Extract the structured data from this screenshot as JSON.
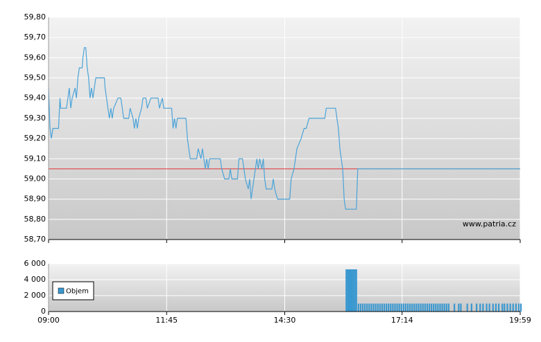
{
  "chart_data": [
    {
      "type": "line",
      "watermark": "www.patria.cz",
      "color": "#4aa3d8",
      "reference_line": 59.05,
      "reference_color": "#e03030",
      "x": [
        0,
        2,
        4,
        6,
        14,
        16,
        17,
        25,
        27,
        29,
        31,
        33,
        37,
        39,
        41,
        43,
        47,
        48,
        50,
        52,
        54,
        56,
        58,
        60,
        62,
        64,
        66,
        78,
        79,
        81,
        83,
        85,
        87,
        89,
        91,
        97,
        101,
        103,
        105,
        112,
        114,
        118,
        120,
        122,
        124,
        126,
        130,
        132,
        136,
        138,
        143,
        153,
        155,
        159,
        161,
        172,
        174,
        176,
        178,
        180,
        192,
        194,
        196,
        198,
        207,
        209,
        213,
        215,
        219,
        221,
        223,
        225,
        240,
        242,
        246,
        252,
        254,
        256,
        264,
        266,
        271,
        273,
        275,
        279,
        281,
        283,
        285,
        287,
        291,
        293,
        295,
        298,
        300,
        302,
        304,
        312,
        314,
        316,
        320,
        337,
        339,
        343,
        347,
        353,
        357,
        360,
        364,
        386,
        388,
        401,
        403,
        405,
        407,
        409,
        411,
        413,
        415,
        430,
        432,
        659
      ],
      "values": [
        59.45,
        59.25,
        59.2,
        59.25,
        59.25,
        59.4,
        59.35,
        59.35,
        59.4,
        59.45,
        59.35,
        59.4,
        59.45,
        59.4,
        59.5,
        59.55,
        59.55,
        59.6,
        59.65,
        59.65,
        59.55,
        59.5,
        59.4,
        59.45,
        59.4,
        59.45,
        59.5,
        59.5,
        59.45,
        59.4,
        59.35,
        59.3,
        59.35,
        59.3,
        59.35,
        59.4,
        59.4,
        59.35,
        59.3,
        59.3,
        59.35,
        59.3,
        59.25,
        59.3,
        59.25,
        59.3,
        59.35,
        59.4,
        59.4,
        59.35,
        59.4,
        59.4,
        59.35,
        59.4,
        59.35,
        59.35,
        59.25,
        59.3,
        59.25,
        59.3,
        59.3,
        59.2,
        59.15,
        59.1,
        59.1,
        59.15,
        59.1,
        59.15,
        59.05,
        59.1,
        59.05,
        59.1,
        59.1,
        59.05,
        59.0,
        59.0,
        59.05,
        59.0,
        59.0,
        59.1,
        59.1,
        59.05,
        59.0,
        58.95,
        59.0,
        58.9,
        58.95,
        59.0,
        59.1,
        59.05,
        59.1,
        59.05,
        59.1,
        59.0,
        58.95,
        58.95,
        59.0,
        58.95,
        58.9,
        58.9,
        59.0,
        59.05,
        59.15,
        59.2,
        59.25,
        59.25,
        59.3,
        59.3,
        59.35,
        59.35,
        59.3,
        59.25,
        59.15,
        59.1,
        59.05,
        58.9,
        58.85,
        58.85,
        59.05,
        59.05
      ],
      "xlim": [
        0,
        659
      ],
      "xticks": [
        0,
        165,
        330,
        494,
        659
      ],
      "ylim": [
        58.7,
        59.8
      ],
      "yticks": [
        {
          "value": 58.7,
          "label": "58,70"
        },
        {
          "value": 58.8,
          "label": "58,80"
        },
        {
          "value": 58.9,
          "label": "58,90"
        },
        {
          "value": 59.0,
          "label": "59,00"
        },
        {
          "value": 59.1,
          "label": "59,10"
        },
        {
          "value": 59.2,
          "label": "59,20"
        },
        {
          "value": 59.3,
          "label": "59,30"
        },
        {
          "value": 59.4,
          "label": "59,40"
        },
        {
          "value": 59.5,
          "label": "59,50"
        },
        {
          "value": 59.6,
          "label": "59,60"
        },
        {
          "value": 59.7,
          "label": "59,70"
        },
        {
          "value": 59.8,
          "label": "59,80"
        }
      ],
      "grid": true
    },
    {
      "type": "bar",
      "legend": "bottom-left",
      "x": [
        415,
        417,
        419,
        421,
        423,
        425,
        427,
        429,
        432,
        435,
        438,
        441,
        444,
        447,
        450,
        453,
        456,
        459,
        462,
        465,
        468,
        471,
        474,
        477,
        480,
        483,
        486,
        489,
        492,
        495,
        498,
        501,
        504,
        507,
        510,
        513,
        516,
        519,
        522,
        525,
        528,
        531,
        534,
        537,
        540,
        543,
        546,
        549,
        552,
        555,
        558,
        566,
        572,
        575,
        584,
        590,
        597,
        602,
        606,
        611,
        615,
        620,
        624,
        628,
        633,
        636,
        640,
        644,
        648,
        652,
        656,
        659
      ],
      "series": [
        {
          "name": "Objem",
          "color": "#3a98d0",
          "values": [
            5300,
            5300,
            5300,
            5300,
            5300,
            5300,
            5300,
            5300,
            1000,
            1000,
            1000,
            1000,
            1000,
            1000,
            1000,
            1000,
            1000,
            1000,
            1000,
            1000,
            1000,
            1000,
            1000,
            1000,
            1000,
            1000,
            1000,
            1000,
            1000,
            1000,
            1000,
            1000,
            1000,
            1000,
            1000,
            1000,
            1000,
            1000,
            1000,
            1000,
            1000,
            1000,
            1000,
            1000,
            1000,
            1000,
            1000,
            1000,
            1000,
            1000,
            1000,
            1000,
            1000,
            1000,
            1000,
            1000,
            1000,
            1000,
            1000,
            1000,
            1000,
            1000,
            1000,
            1000,
            1000,
            1000,
            1000,
            1000,
            1000,
            1000,
            1000,
            1000
          ]
        }
      ],
      "xlim": [
        0,
        659
      ],
      "xticks": [
        {
          "value": 0,
          "label": "09:00"
        },
        {
          "value": 165,
          "label": "11:45"
        },
        {
          "value": 330,
          "label": "14:30"
        },
        {
          "value": 494,
          "label": "17:14"
        },
        {
          "value": 659,
          "label": "19:59"
        }
      ],
      "ylim": [
        0,
        6000
      ],
      "yticks": [
        0,
        {
          "value": 2000,
          "label": "2 000"
        },
        {
          "value": 4000,
          "label": "4 000"
        },
        {
          "value": 6000,
          "label": "6 000"
        }
      ],
      "grid": true
    }
  ]
}
